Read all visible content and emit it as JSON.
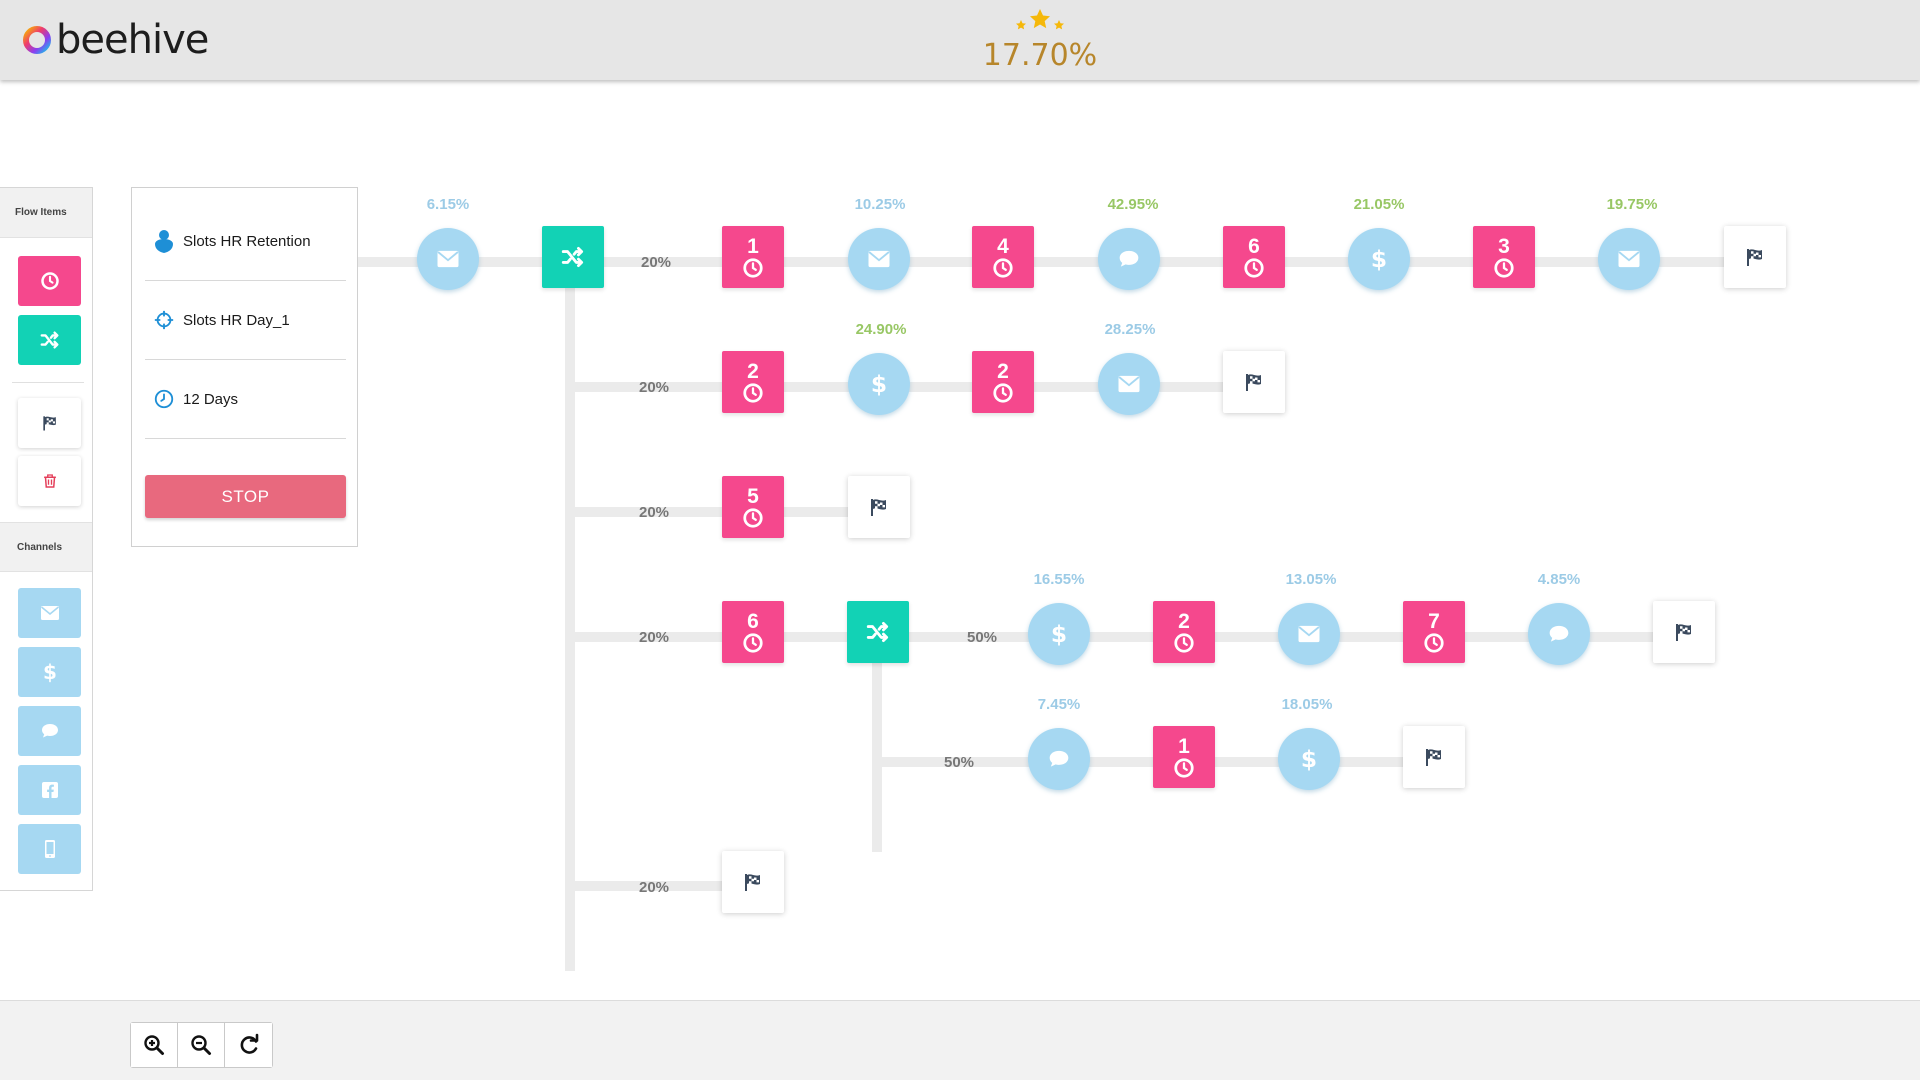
{
  "header": {
    "app_name": "beehive",
    "score": "17.70%",
    "colors": {
      "score": "#b7862b",
      "stars": "#f5b80a"
    }
  },
  "sidebar": {
    "flow_items_title": "Flow Items",
    "channels_title": "Channels",
    "flow_items": [
      {
        "icon": "clock-icon",
        "color": "#f5488d"
      },
      {
        "icon": "shuffle-icon",
        "color": "#12d2b5"
      },
      {
        "icon": "flag-icon",
        "color": "#ffffff"
      },
      {
        "icon": "trash-icon",
        "color": "#ffffff"
      }
    ],
    "channels": [
      {
        "icon": "email-icon"
      },
      {
        "icon": "dollar-icon"
      },
      {
        "icon": "chat-icon"
      },
      {
        "icon": "facebook-icon"
      },
      {
        "icon": "mobile-icon"
      }
    ]
  },
  "info_panel": {
    "campaign": "Slots HR Retention",
    "target": "Slots HR Day_1",
    "duration": "12 Days",
    "stop_label": "STOP"
  },
  "flow": {
    "split_labels": {
      "b1": "20%",
      "b2": "20%",
      "b3": "20%",
      "b4": "20%",
      "b5": "20%",
      "s1": "50%",
      "s2": "50%"
    },
    "row1": {
      "email1_pct": "6.15%",
      "wait1": "1",
      "email2_pct": "10.25%",
      "wait2": "4",
      "chat1_pct": "42.95%",
      "wait3": "6",
      "dollar1_pct": "21.05%",
      "wait4": "3",
      "email3_pct": "19.75%"
    },
    "row2": {
      "wait1": "2",
      "dollar_pct": "24.90%",
      "wait2": "2",
      "email_pct": "28.25%"
    },
    "row3": {
      "wait1": "5"
    },
    "row4": {
      "wait1": "6",
      "dollar_pct": "16.55%",
      "wait2": "2",
      "email_pct": "13.05%",
      "wait3": "7",
      "chat_pct": "4.85%"
    },
    "row5": {
      "chat_pct": "7.45%",
      "wait1": "1",
      "dollar_pct": "18.05%"
    },
    "colors": {
      "pink": "#f5488d",
      "teal": "#12d2b5",
      "bubble": "#a6d8f2",
      "pct_blue": "#9ccbe6",
      "pct_green": "#98c765"
    }
  },
  "footer": {
    "buttons": [
      "zoom-in-icon",
      "zoom-out-icon",
      "reset-icon"
    ]
  }
}
